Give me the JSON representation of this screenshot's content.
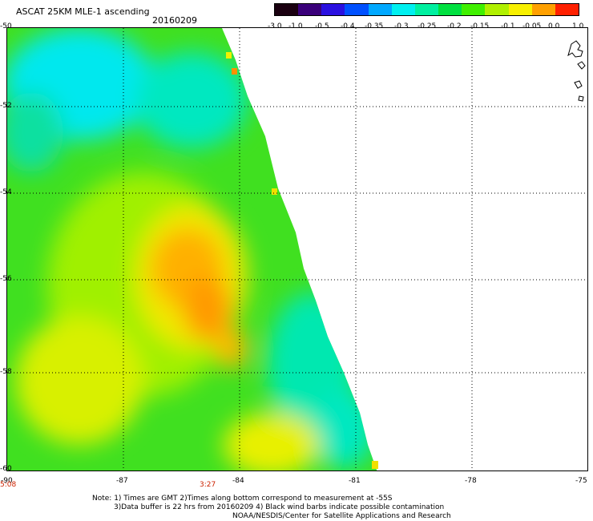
{
  "header": {
    "title": "ASCAT 25KM MLE-1 ascending",
    "date": "20160209"
  },
  "colorbar": {
    "labels": [
      "-3.0",
      "-1.0",
      "-0.5",
      "-0.4",
      "-0.35",
      "-0.3",
      "-0.25",
      "-0.2",
      "-0.15",
      "-0.1",
      "-0.05",
      "0.0",
      "1.0"
    ],
    "colors": [
      "#1a0010",
      "#3a007a",
      "#2a10e0",
      "#0050ff",
      "#00a8ff",
      "#00f0f0",
      "#00f0a0",
      "#00e040",
      "#40f000",
      "#b0f000",
      "#f8f000",
      "#ffa000",
      "#ff2000"
    ]
  },
  "map": {
    "lat_labels": [
      "-50",
      "-52",
      "-54",
      "-56",
      "-58",
      "-60"
    ],
    "lon_labels": [
      "-90",
      "-87",
      "-84",
      "-81",
      "-78",
      "-75"
    ],
    "time_labels": [
      "5:08",
      "3:27"
    ]
  },
  "footer": {
    "note_line1": "Note: 1) Times are GMT 2)Times along bottom correspond to measurement at -55S",
    "note_line2": "3)Data buffer is 22 hrs from 20160209 4) Black wind barbs indicate possible contamination",
    "credit": "NOAA/NESDIS/Center for Satellite Applications and Research"
  }
}
